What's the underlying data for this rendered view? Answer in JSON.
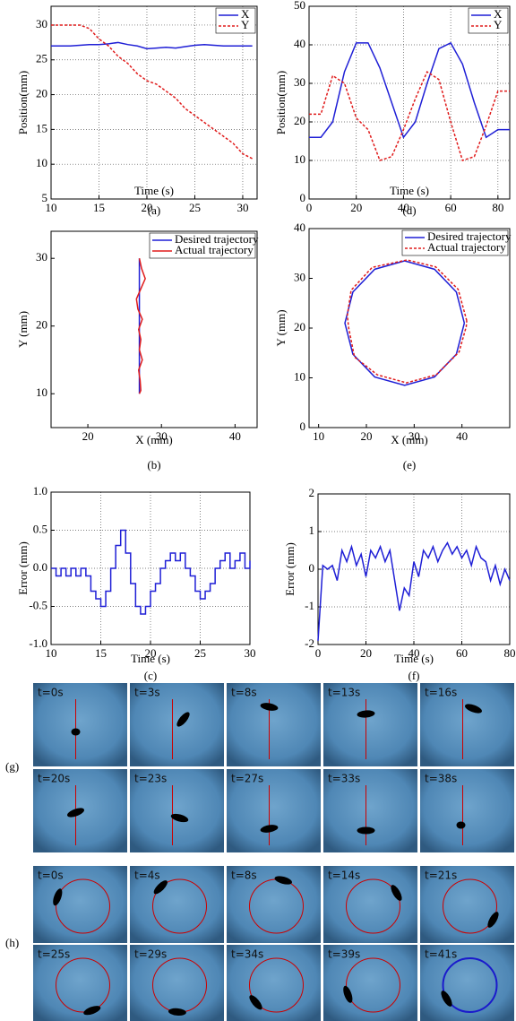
{
  "chart_data": [
    {
      "type": "line",
      "xlabel": "Time (s)",
      "ylabel": "Position(mm)",
      "caption": "(a)",
      "grid": true,
      "legend": "upper right",
      "xlim": [
        10,
        31.5
      ],
      "xticks": [
        10,
        15,
        20,
        25,
        30
      ],
      "ylim": [
        5,
        32.7
      ],
      "yticks": [
        5,
        10,
        15,
        20,
        25,
        30
      ],
      "x": [
        10,
        11,
        12,
        13,
        14,
        15,
        16,
        17,
        18,
        19,
        20,
        21,
        22,
        23,
        24,
        25,
        26,
        27,
        28,
        29,
        30,
        31
      ],
      "series": [
        {
          "name": "X",
          "color": "#1f1fd6",
          "dash": false,
          "values": [
            27,
            27,
            27,
            27.1,
            27.2,
            27.2,
            27.3,
            27.5,
            27.2,
            27,
            26.6,
            26.7,
            26.8,
            26.7,
            26.9,
            27.1,
            27.2,
            27.1,
            27,
            27,
            27,
            27
          ]
        },
        {
          "name": "Y",
          "color": "#e01b1b",
          "dash": true,
          "values": [
            30,
            30,
            30,
            30,
            29.5,
            28,
            27,
            25.5,
            24.5,
            23,
            22,
            21.5,
            20.5,
            19.5,
            18,
            17,
            16,
            15,
            14,
            13,
            11.5,
            10.8
          ]
        }
      ]
    },
    {
      "type": "line",
      "xlabel": "Time (s)",
      "ylabel": "Position(mm)",
      "caption": "(d)",
      "grid": true,
      "legend": "upper right",
      "xlim": [
        0,
        85
      ],
      "xticks": [
        0,
        20,
        40,
        60,
        80
      ],
      "ylim": [
        0,
        50
      ],
      "yticks": [
        0,
        10,
        20,
        30,
        40,
        50
      ],
      "x": [
        0,
        5,
        10,
        15,
        20,
        25,
        30,
        35,
        40,
        45,
        50,
        55,
        60,
        65,
        70,
        75,
        80,
        85
      ],
      "series": [
        {
          "name": "X",
          "color": "#1f1fd6",
          "dash": false,
          "values": [
            16,
            16,
            20,
            33,
            40.5,
            40.5,
            34,
            25,
            16,
            20,
            30,
            39,
            40.5,
            35,
            25,
            16,
            18,
            18
          ]
        },
        {
          "name": "Y",
          "color": "#e01b1b",
          "dash": true,
          "values": [
            22,
            22,
            32,
            30,
            21,
            18,
            10,
            11,
            18,
            26,
            33,
            31,
            20,
            10,
            11,
            19,
            28,
            28
          ]
        }
      ]
    },
    {
      "type": "line",
      "xlabel": "X (mm)",
      "ylabel": "Y (mm)",
      "caption": "(b)",
      "grid": false,
      "legend": "upper right",
      "xlim": [
        15,
        43
      ],
      "xticks": [
        20,
        30,
        40
      ],
      "ylim": [
        5,
        34
      ],
      "yticks": [
        10,
        20,
        30
      ],
      "series": [
        {
          "name": "Desired trajectory",
          "color": "#1f1fd6",
          "dash": false,
          "x": [
            27,
            27
          ],
          "values": [
            30,
            10
          ]
        },
        {
          "name": "Actual trajectory",
          "color": "#e01b1b",
          "dash": false,
          "x": [
            27,
            27.3,
            27.8,
            27.2,
            26.6,
            26.8,
            27.4,
            26.9,
            27.2,
            27,
            27.4,
            26.9,
            27.1,
            27.2,
            27
          ],
          "values": [
            30,
            28.5,
            27,
            25.5,
            24,
            22.5,
            21,
            19.5,
            18,
            16.5,
            15,
            13.5,
            12,
            10.5,
            10
          ]
        }
      ]
    },
    {
      "type": "line",
      "xlabel": "X (mm)",
      "ylabel": "Y (mm)",
      "caption": "(e)",
      "grid": false,
      "legend": "upper right",
      "xlim": [
        8,
        50
      ],
      "xticks": [
        10,
        20,
        30,
        40
      ],
      "ylim": [
        0,
        40
      ],
      "yticks": [
        0,
        10,
        20,
        30,
        40
      ],
      "series": [
        {
          "name": "Desired trajectory",
          "color": "#1f1fd6",
          "dash": false,
          "x": [
            40.5,
            38.83,
            34.25,
            28,
            21.75,
            17.17,
            15.5,
            17.17,
            21.75,
            28,
            34.25,
            38.83,
            40.5
          ],
          "values": [
            21,
            27.25,
            31.83,
            33.5,
            31.83,
            27.25,
            21,
            14.75,
            10.17,
            8.5,
            10.17,
            14.75,
            21
          ]
        },
        {
          "name": "Actual trajectory",
          "color": "#e01b1b",
          "dash": true,
          "x": [
            41,
            39.2,
            34.5,
            28.5,
            21.2,
            16.8,
            16,
            16.3,
            17.5,
            22.3,
            28.4,
            34.6,
            39.4,
            40.9,
            41
          ],
          "values": [
            21.5,
            27.8,
            32.3,
            33.7,
            32.2,
            27.6,
            22.5,
            20,
            14.2,
            10.6,
            9,
            10.6,
            15.2,
            20.3,
            21.5
          ]
        }
      ]
    },
    {
      "type": "step",
      "xlabel": "Time (s)",
      "ylabel": "Error (mm)",
      "caption": "(c)",
      "grid": true,
      "xlim": [
        10,
        30
      ],
      "xticks": [
        10,
        15,
        20,
        25,
        30
      ],
      "ylim": [
        -1,
        1
      ],
      "yticks": [
        {
          "value": -1,
          "label": "-1.0"
        },
        -0.5,
        {
          "value": 0,
          "label": "0.0"
        },
        0.5,
        {
          "value": 1,
          "label": "1.0"
        }
      ],
      "x": [
        10,
        10.5,
        11,
        11.5,
        12,
        12.5,
        13,
        13.5,
        14,
        14.5,
        15,
        15.5,
        16,
        16.5,
        17,
        17.5,
        18,
        18.5,
        19,
        19.5,
        20,
        20.5,
        21,
        21.5,
        22,
        22.5,
        23,
        23.5,
        24,
        24.5,
        25,
        25.5,
        26,
        26.5,
        27,
        27.5,
        28,
        28.5,
        29,
        29.5,
        30
      ],
      "series": [
        {
          "color": "#1f1fd6",
          "dash": false,
          "values": [
            0,
            -0.1,
            0,
            -0.1,
            0,
            -0.1,
            0,
            -0.1,
            -0.3,
            -0.4,
            -0.5,
            -0.3,
            0,
            0.3,
            0.5,
            0.2,
            -0.2,
            -0.5,
            -0.6,
            -0.5,
            -0.3,
            -0.2,
            0,
            0.1,
            0.2,
            0.1,
            0.2,
            0,
            -0.1,
            -0.3,
            -0.4,
            -0.3,
            -0.2,
            0,
            0.1,
            0.2,
            0,
            0.1,
            0.2,
            0,
            0.1
          ]
        }
      ]
    },
    {
      "type": "line",
      "xlabel": "Time (s)",
      "ylabel": "Error (mm)",
      "caption": "(f)",
      "grid": true,
      "xlim": [
        0,
        80
      ],
      "xticks": [
        0,
        20,
        40,
        60,
        80
      ],
      "ylim": [
        -2,
        2
      ],
      "yticks": [
        -2,
        -1,
        0,
        1,
        2
      ],
      "x": [
        0,
        2,
        4,
        6,
        8,
        10,
        12,
        14,
        16,
        18,
        20,
        22,
        24,
        26,
        28,
        30,
        32,
        34,
        36,
        38,
        40,
        42,
        44,
        46,
        48,
        50,
        52,
        54,
        56,
        58,
        60,
        62,
        64,
        66,
        68,
        70,
        72,
        74,
        76,
        78,
        80
      ],
      "series": [
        {
          "color": "#1f1fd6",
          "dash": false,
          "values": [
            -1.9,
            0.1,
            0,
            0.1,
            -0.3,
            0.5,
            0.2,
            0.6,
            0.1,
            0.4,
            -0.2,
            0.5,
            0.3,
            0.6,
            0.2,
            0.5,
            -0.3,
            -1.1,
            -0.5,
            -0.7,
            0.2,
            -0.2,
            0.5,
            0.3,
            0.6,
            0.2,
            0.5,
            0.7,
            0.4,
            0.6,
            0.3,
            0.5,
            0.1,
            0.6,
            0.3,
            0.2,
            -0.3,
            0.1,
            -0.4,
            0,
            -0.3
          ]
        }
      ]
    }
  ],
  "panels": [
    {
      "label": "(g)",
      "frames": [
        "t=0s",
        "t=3s",
        "t=8s",
        "t=13s",
        "t=16s",
        "t=20s",
        "t=23s",
        "t=27s",
        "t=33s",
        "t=38s"
      ]
    },
    {
      "label": "(h)",
      "frames": [
        "t=0s",
        "t=4s",
        "t=8s",
        "t=14s",
        "t=21s",
        "t=25s",
        "t=29s",
        "t=34s",
        "t=39s",
        "t=41s"
      ]
    }
  ]
}
